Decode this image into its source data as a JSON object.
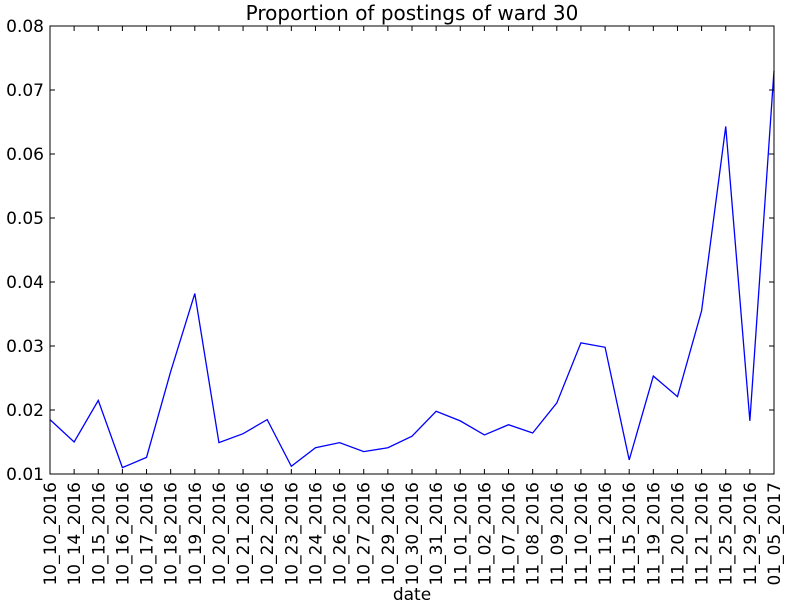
{
  "chart_data": {
    "type": "line",
    "title": "Proportion of postings of ward 30",
    "xlabel": "date",
    "ylabel": "",
    "ylim": [
      0.01,
      0.08
    ],
    "yticks": [
      "0.01",
      "0.02",
      "0.03",
      "0.04",
      "0.05",
      "0.06",
      "0.07",
      "0.08"
    ],
    "grid": false,
    "line_color": "#0000ff",
    "categories": [
      "10_10_2016",
      "10_14_2016",
      "10_15_2016",
      "10_16_2016",
      "10_17_2016",
      "10_18_2016",
      "10_19_2016",
      "10_20_2016",
      "10_21_2016",
      "10_22_2016",
      "10_23_2016",
      "10_24_2016",
      "10_26_2016",
      "10_27_2016",
      "10_29_2016",
      "10_30_2016",
      "10_31_2016",
      "11_01_2016",
      "11_02_2016",
      "11_07_2016",
      "11_08_2016",
      "11_09_2016",
      "11_10_2016",
      "11_11_2016",
      "11_15_2016",
      "11_19_2016",
      "11_20_2016",
      "11_21_2016",
      "11_25_2016",
      "11_29_2016",
      "01_05_2017"
    ],
    "values": [
      0.0185,
      0.015,
      0.0215,
      0.011,
      0.0126,
      0.026,
      0.0382,
      0.0149,
      0.0163,
      0.0185,
      0.0112,
      0.0141,
      0.0149,
      0.0135,
      0.0141,
      0.0159,
      0.0198,
      0.0183,
      0.0161,
      0.0177,
      0.0164,
      0.0211,
      0.0305,
      0.0298,
      0.0122,
      0.0253,
      0.0221,
      0.0355,
      0.0643,
      0.0183,
      0.073
    ]
  }
}
